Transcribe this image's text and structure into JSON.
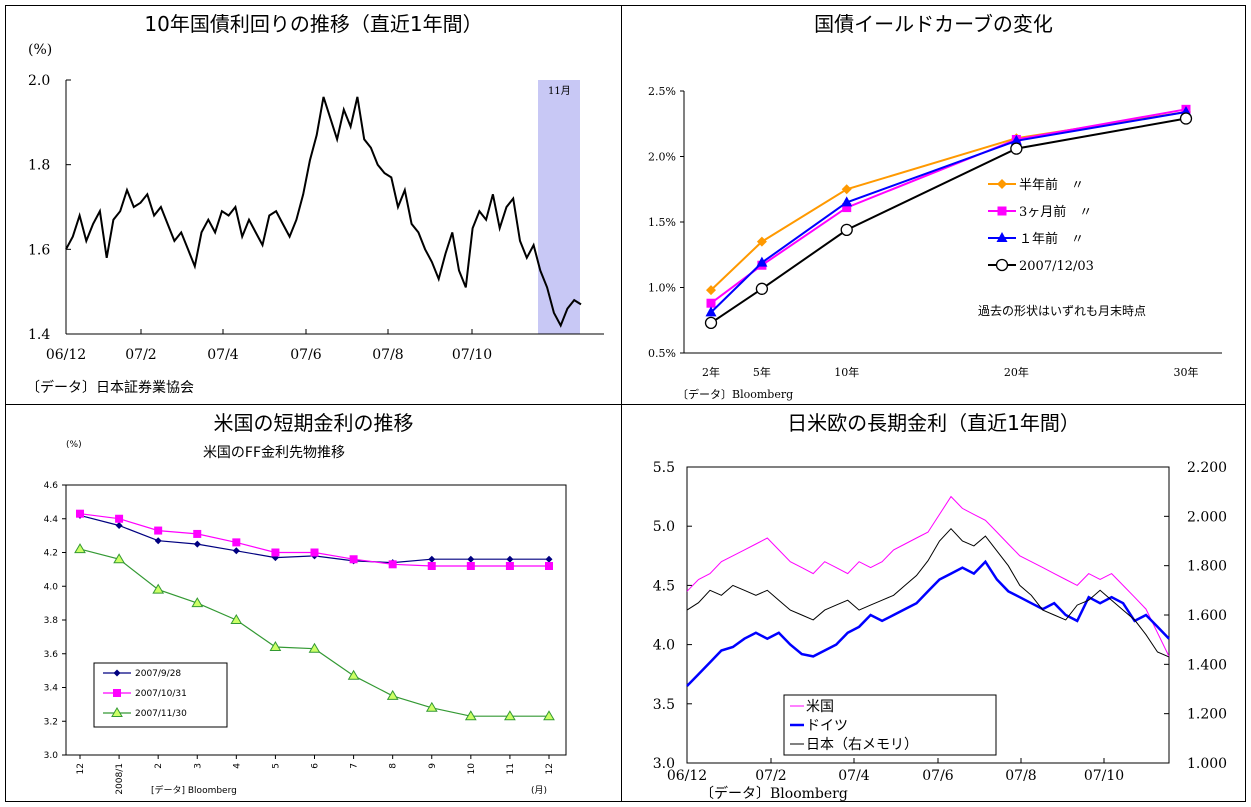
{
  "panels": {
    "p1": {
      "title": "10年国債利回りの推移（直近1年間）"
    },
    "p2": {
      "title": "国債イールドカーブの変化"
    },
    "p3": {
      "title": "米国の短期金利の推移"
    },
    "p4": {
      "title": "日米欧の長期金利（直近1年間）"
    }
  },
  "chart_data": [
    {
      "type": "line",
      "title": "10年国債利回りの推移（直近1年間）",
      "ylabel": "(%)",
      "ylim": [
        1.4,
        2.0
      ],
      "yticks": [
        "2.0",
        "1.8",
        "1.6",
        "1.4"
      ],
      "xticks": [
        "06/12",
        "07/2",
        "07/4",
        "07/6",
        "07/8",
        "07/10"
      ],
      "highlight_label": "11月",
      "source": "〔データ〕日本証券業協会",
      "series": [
        {
          "values": [
            1.6,
            1.63,
            1.68,
            1.62,
            1.66,
            1.69,
            1.58,
            1.67,
            1.69,
            1.74,
            1.7,
            1.71,
            1.73,
            1.68,
            1.7,
            1.66,
            1.62,
            1.64,
            1.6,
            1.56,
            1.64,
            1.67,
            1.64,
            1.69,
            1.68,
            1.7,
            1.63,
            1.67,
            1.64,
            1.61,
            1.68,
            1.69,
            1.66,
            1.63,
            1.67,
            1.73,
            1.81,
            1.87,
            1.96,
            1.91,
            1.86,
            1.93,
            1.89,
            1.96,
            1.86,
            1.84,
            1.8,
            1.78,
            1.77,
            1.7,
            1.74,
            1.66,
            1.64,
            1.6,
            1.57,
            1.53,
            1.59,
            1.64,
            1.55,
            1.51,
            1.65,
            1.69,
            1.67,
            1.73,
            1.65,
            1.7,
            1.72,
            1.62,
            1.58,
            1.61,
            1.55,
            1.51,
            1.45,
            1.42,
            1.46,
            1.48,
            1.47
          ]
        }
      ]
    },
    {
      "type": "line",
      "title": "国債イールドカーブの変化",
      "categories": [
        "2年",
        "5年",
        "10年",
        "20年",
        "30年"
      ],
      "ylim": [
        0.5,
        2.5
      ],
      "yticks": [
        "2.5%",
        "2.0%",
        "1.5%",
        "1.0%",
        "0.5%"
      ],
      "annotation": "過去の形状はいずれも月末時点",
      "source": "〔データ〕Bloomberg",
      "series": [
        {
          "name": "半年前　〃",
          "color": "#ff9900",
          "values": [
            0.98,
            1.35,
            1.75,
            2.14,
            2.34
          ]
        },
        {
          "name": "3ヶ月前　〃",
          "color": "#ff00ff",
          "values": [
            0.88,
            1.17,
            1.61,
            2.13,
            2.36
          ]
        },
        {
          "name": "１年前　〃",
          "color": "#0000ff",
          "values": [
            0.81,
            1.19,
            1.65,
            2.12,
            2.34
          ]
        },
        {
          "name": "2007/12/03",
          "color": "#000000",
          "values": [
            0.73,
            0.99,
            1.44,
            2.06,
            2.29
          ]
        }
      ]
    },
    {
      "type": "line",
      "title": "米国のFF金利先物推移",
      "ylabel": "(%)",
      "xlabel": "(月)",
      "ylim": [
        3.0,
        4.6
      ],
      "yticks": [
        "4.6",
        "4.4",
        "4.2",
        "4.0",
        "3.8",
        "3.6",
        "3.4",
        "3.2",
        "3.0"
      ],
      "categories": [
        "12",
        "2008/1",
        "2",
        "3",
        "4",
        "5",
        "6",
        "7",
        "8",
        "9",
        "10",
        "11",
        "12"
      ],
      "source": "[データ] Bloomberg",
      "series": [
        {
          "name": "2007/9/28",
          "color": "#000080",
          "values": [
            4.42,
            4.36,
            4.27,
            4.25,
            4.21,
            4.17,
            4.18,
            4.15,
            4.14,
            4.16,
            4.16,
            4.16,
            4.16
          ]
        },
        {
          "name": "2007/10/31",
          "color": "#ff00ff",
          "values": [
            4.43,
            4.4,
            4.33,
            4.31,
            4.26,
            4.2,
            4.2,
            4.16,
            4.13,
            4.12,
            4.12,
            4.12,
            4.12
          ]
        },
        {
          "name": "2007/11/30",
          "color": "#339933",
          "values": [
            4.22,
            4.16,
            3.98,
            3.9,
            3.8,
            3.64,
            3.63,
            3.47,
            3.35,
            3.28,
            3.23,
            3.23,
            3.23
          ]
        }
      ]
    },
    {
      "type": "line",
      "title": "日米欧の長期金利（直近1年間）",
      "ylim": [
        3.0,
        5.5
      ],
      "y2lim": [
        1.0,
        2.2
      ],
      "yticks": [
        "5.5",
        "5.0",
        "4.5",
        "4.0",
        "3.5",
        "3.0"
      ],
      "y2ticks": [
        "2.200",
        "2.000",
        "1.800",
        "1.600",
        "1.400",
        "1.200",
        "1.000"
      ],
      "xticks": [
        "06/12",
        "07/2",
        "07/4",
        "07/6",
        "07/8",
        "07/10"
      ],
      "source": "〔データ〕Bloomberg",
      "series": [
        {
          "name": "米国",
          "color": "#ff00ff",
          "values": [
            4.45,
            4.55,
            4.6,
            4.7,
            4.75,
            4.8,
            4.85,
            4.9,
            4.8,
            4.7,
            4.65,
            4.6,
            4.7,
            4.65,
            4.6,
            4.7,
            4.65,
            4.7,
            4.8,
            4.85,
            4.9,
            4.95,
            5.1,
            5.25,
            5.15,
            5.1,
            5.05,
            4.95,
            4.85,
            4.75,
            4.7,
            4.65,
            4.6,
            4.55,
            4.5,
            4.6,
            4.55,
            4.6,
            4.5,
            4.4,
            4.3,
            4.1,
            3.9
          ]
        },
        {
          "name": "ドイツ",
          "color": "#0000ff",
          "values": [
            3.65,
            3.75,
            3.85,
            3.95,
            3.98,
            4.05,
            4.1,
            4.05,
            4.1,
            4.0,
            3.92,
            3.9,
            3.95,
            4.0,
            4.1,
            4.15,
            4.25,
            4.2,
            4.25,
            4.3,
            4.35,
            4.45,
            4.55,
            4.6,
            4.65,
            4.6,
            4.7,
            4.55,
            4.45,
            4.4,
            4.35,
            4.3,
            4.35,
            4.25,
            4.2,
            4.4,
            4.35,
            4.4,
            4.35,
            4.2,
            4.25,
            4.15,
            4.05
          ]
        },
        {
          "name": "日本（右メモリ）",
          "color": "#000000",
          "values": [
            1.62,
            1.65,
            1.7,
            1.68,
            1.72,
            1.7,
            1.68,
            1.7,
            1.66,
            1.62,
            1.6,
            1.58,
            1.62,
            1.64,
            1.66,
            1.62,
            1.64,
            1.66,
            1.68,
            1.72,
            1.76,
            1.82,
            1.9,
            1.95,
            1.9,
            1.88,
            1.92,
            1.86,
            1.8,
            1.72,
            1.68,
            1.62,
            1.6,
            1.58,
            1.64,
            1.66,
            1.7,
            1.66,
            1.62,
            1.58,
            1.52,
            1.45,
            1.43
          ]
        }
      ]
    }
  ]
}
